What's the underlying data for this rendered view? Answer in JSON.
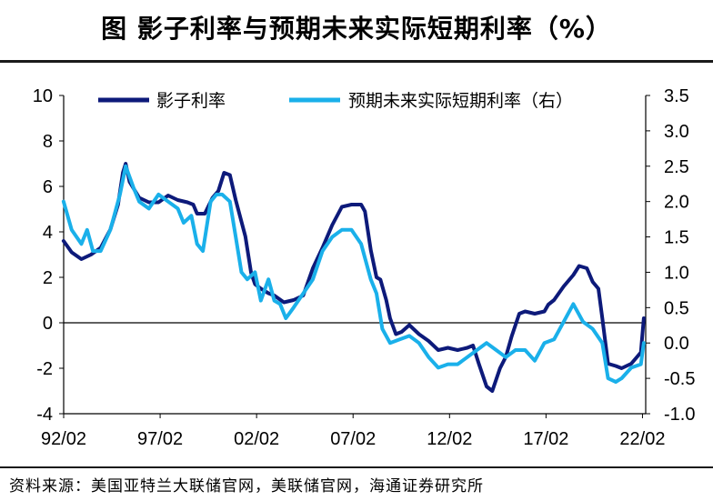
{
  "title": "图  影子利率与预期未来实际短期利率（%）",
  "source": "资料来源：美国亚特兰大联储官网，美联储官网，海通证券研究所",
  "chart_data": {
    "type": "line",
    "title": "图  影子利率与预期未来实际短期利率（%）",
    "x_tick_labels": [
      "92/02",
      "97/02",
      "02/02",
      "07/02",
      "12/02",
      "17/02",
      "22/02"
    ],
    "x_tick_years": [
      1992.083,
      1997.083,
      2002.083,
      2007.083,
      2012.083,
      2017.083,
      2022.083
    ],
    "x_range": [
      1992.083,
      2022.25
    ],
    "left_axis": {
      "ticks": [
        "10",
        "8",
        "6",
        "4",
        "2",
        "0",
        "-2",
        "-4"
      ],
      "ylim": [
        -4,
        10
      ]
    },
    "right_axis": {
      "ticks": [
        "3.5",
        "3.0",
        "2.5",
        "2.0",
        "1.5",
        "1.0",
        "0.5",
        "0.0",
        "-0.5",
        "-1.0"
      ],
      "ylim": [
        -1.0,
        3.5
      ]
    },
    "grid": false,
    "legend_position": "top",
    "series": [
      {
        "name": "影子利率",
        "axis": "left",
        "color": "#0d1a7a",
        "points": [
          [
            1992.08,
            3.6
          ],
          [
            1992.5,
            3.1
          ],
          [
            1993.0,
            2.8
          ],
          [
            1993.5,
            3.0
          ],
          [
            1994.0,
            3.3
          ],
          [
            1994.5,
            4.1
          ],
          [
            1994.9,
            5.2
          ],
          [
            1995.15,
            6.6
          ],
          [
            1995.3,
            7.0
          ],
          [
            1995.5,
            6.2
          ],
          [
            1996.0,
            5.5
          ],
          [
            1996.5,
            5.3
          ],
          [
            1997.0,
            5.3
          ],
          [
            1997.5,
            5.6
          ],
          [
            1998.0,
            5.4
          ],
          [
            1998.5,
            5.3
          ],
          [
            1998.8,
            5.2
          ],
          [
            1999.0,
            4.8
          ],
          [
            1999.4,
            4.8
          ],
          [
            1999.8,
            5.5
          ],
          [
            2000.1,
            5.8
          ],
          [
            2000.4,
            6.6
          ],
          [
            2000.7,
            6.5
          ],
          [
            2001.0,
            5.4
          ],
          [
            2001.5,
            3.8
          ],
          [
            2001.8,
            2.2
          ],
          [
            2002.0,
            1.7
          ],
          [
            2002.3,
            1.5
          ],
          [
            2002.7,
            1.3
          ],
          [
            2003.0,
            1.2
          ],
          [
            2003.5,
            0.9
          ],
          [
            2004.0,
            1.0
          ],
          [
            2004.5,
            1.2
          ],
          [
            2005.0,
            2.4
          ],
          [
            2005.5,
            3.3
          ],
          [
            2006.0,
            4.3
          ],
          [
            2006.5,
            5.1
          ],
          [
            2007.0,
            5.2
          ],
          [
            2007.5,
            5.2
          ],
          [
            2007.7,
            4.9
          ],
          [
            2008.0,
            3.2
          ],
          [
            2008.3,
            2.0
          ],
          [
            2008.5,
            1.9
          ],
          [
            2008.8,
            1.0
          ],
          [
            2009.0,
            0.2
          ],
          [
            2009.3,
            -0.5
          ],
          [
            2009.6,
            -0.4
          ],
          [
            2010.0,
            -0.1
          ],
          [
            2010.5,
            -0.5
          ],
          [
            2011.0,
            -0.8
          ],
          [
            2011.5,
            -1.2
          ],
          [
            2012.0,
            -1.1
          ],
          [
            2012.5,
            -1.2
          ],
          [
            2013.0,
            -1.1
          ],
          [
            2013.3,
            -1.0
          ],
          [
            2013.6,
            -1.8
          ],
          [
            2014.0,
            -2.8
          ],
          [
            2014.3,
            -3.0
          ],
          [
            2014.7,
            -2.0
          ],
          [
            2015.0,
            -1.5
          ],
          [
            2015.3,
            -0.6
          ],
          [
            2015.7,
            0.4
          ],
          [
            2016.0,
            0.5
          ],
          [
            2016.5,
            0.4
          ],
          [
            2017.0,
            0.5
          ],
          [
            2017.2,
            0.8
          ],
          [
            2017.5,
            1.0
          ],
          [
            2018.0,
            1.6
          ],
          [
            2018.5,
            2.1
          ],
          [
            2018.8,
            2.5
          ],
          [
            2019.2,
            2.4
          ],
          [
            2019.5,
            1.8
          ],
          [
            2019.8,
            1.5
          ],
          [
            2020.0,
            0.2
          ],
          [
            2020.3,
            -1.8
          ],
          [
            2020.7,
            -1.9
          ],
          [
            2021.0,
            -2.0
          ],
          [
            2021.5,
            -1.8
          ],
          [
            2021.8,
            -1.5
          ],
          [
            2022.0,
            -1.3
          ],
          [
            2022.15,
            0.2
          ]
        ]
      },
      {
        "name": "预期未来实际短期利率（右）",
        "axis": "right",
        "color": "#1ab0ea",
        "points": [
          [
            1992.08,
            2.0
          ],
          [
            1992.5,
            1.6
          ],
          [
            1993.0,
            1.4
          ],
          [
            1993.3,
            1.6
          ],
          [
            1993.6,
            1.3
          ],
          [
            1994.0,
            1.3
          ],
          [
            1994.5,
            1.6
          ],
          [
            1995.0,
            2.1
          ],
          [
            1995.3,
            2.5
          ],
          [
            1995.7,
            2.2
          ],
          [
            1996.0,
            2.0
          ],
          [
            1996.5,
            1.9
          ],
          [
            1997.0,
            2.1
          ],
          [
            1997.5,
            2.0
          ],
          [
            1998.0,
            1.9
          ],
          [
            1998.3,
            1.7
          ],
          [
            1998.7,
            1.8
          ],
          [
            1999.0,
            1.4
          ],
          [
            1999.3,
            1.3
          ],
          [
            1999.7,
            2.0
          ],
          [
            2000.0,
            2.1
          ],
          [
            2000.3,
            2.1
          ],
          [
            2000.7,
            2.0
          ],
          [
            2001.0,
            1.5
          ],
          [
            2001.3,
            1.0
          ],
          [
            2001.6,
            0.9
          ],
          [
            2002.0,
            1.0
          ],
          [
            2002.3,
            0.6
          ],
          [
            2002.7,
            0.9
          ],
          [
            2003.0,
            0.6
          ],
          [
            2003.3,
            0.55
          ],
          [
            2003.6,
            0.35
          ],
          [
            2004.0,
            0.5
          ],
          [
            2004.5,
            0.7
          ],
          [
            2005.0,
            0.9
          ],
          [
            2005.5,
            1.3
          ],
          [
            2006.0,
            1.5
          ],
          [
            2006.5,
            1.6
          ],
          [
            2007.0,
            1.6
          ],
          [
            2007.5,
            1.4
          ],
          [
            2008.0,
            0.9
          ],
          [
            2008.3,
            0.7
          ],
          [
            2008.6,
            0.2
          ],
          [
            2009.0,
            0.0
          ],
          [
            2009.5,
            0.05
          ],
          [
            2010.0,
            0.1
          ],
          [
            2010.5,
            0.0
          ],
          [
            2011.0,
            -0.2
          ],
          [
            2011.5,
            -0.35
          ],
          [
            2012.0,
            -0.3
          ],
          [
            2012.5,
            -0.3
          ],
          [
            2013.0,
            -0.2
          ],
          [
            2013.5,
            -0.1
          ],
          [
            2014.0,
            0.0
          ],
          [
            2014.5,
            -0.1
          ],
          [
            2015.0,
            -0.2
          ],
          [
            2015.5,
            -0.1
          ],
          [
            2016.0,
            -0.1
          ],
          [
            2016.5,
            -0.25
          ],
          [
            2017.0,
            0.0
          ],
          [
            2017.5,
            0.05
          ],
          [
            2018.0,
            0.3
          ],
          [
            2018.5,
            0.55
          ],
          [
            2019.0,
            0.3
          ],
          [
            2019.5,
            0.2
          ],
          [
            2020.0,
            0.0
          ],
          [
            2020.3,
            -0.5
          ],
          [
            2020.7,
            -0.55
          ],
          [
            2021.0,
            -0.5
          ],
          [
            2021.5,
            -0.35
          ],
          [
            2022.0,
            -0.3
          ],
          [
            2022.15,
            0.0
          ]
        ]
      }
    ]
  }
}
